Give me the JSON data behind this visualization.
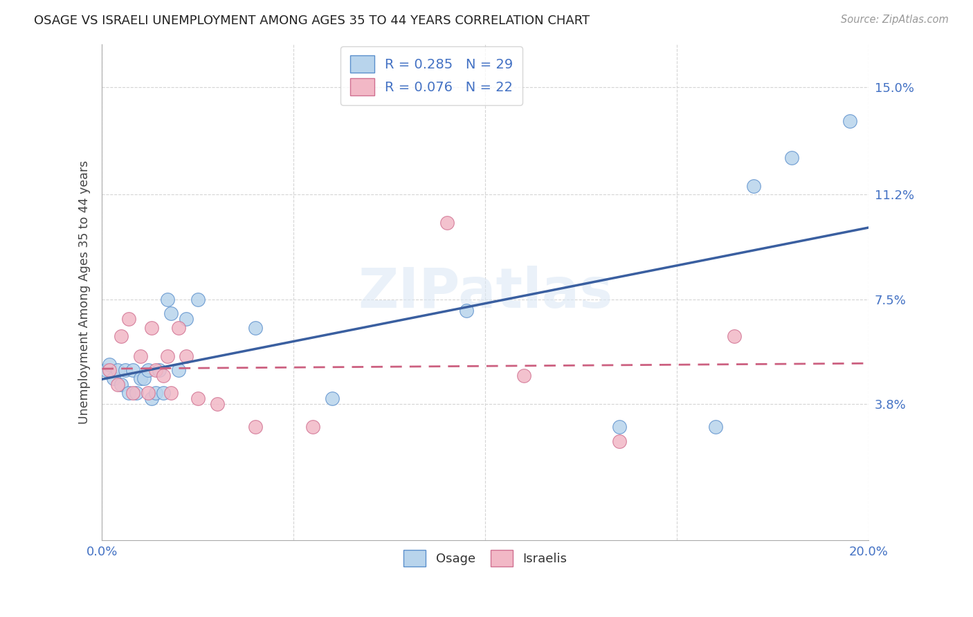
{
  "title": "OSAGE VS ISRAELI UNEMPLOYMENT AMONG AGES 35 TO 44 YEARS CORRELATION CHART",
  "source": "Source: ZipAtlas.com",
  "ylabel": "Unemployment Among Ages 35 to 44 years",
  "xlim": [
    0.0,
    0.2
  ],
  "ylim": [
    -0.01,
    0.165
  ],
  "xtick_values": [
    0.0,
    0.05,
    0.1,
    0.15,
    0.2
  ],
  "xtick_labels": [
    "0.0%",
    "",
    "",
    "",
    "20.0%"
  ],
  "ytick_values": [
    0.038,
    0.075,
    0.112,
    0.15
  ],
  "ytick_labels": [
    "3.8%",
    "7.5%",
    "11.2%",
    "15.0%"
  ],
  "osage_x": [
    0.001,
    0.002,
    0.003,
    0.004,
    0.005,
    0.006,
    0.007,
    0.008,
    0.009,
    0.01,
    0.011,
    0.012,
    0.013,
    0.014,
    0.015,
    0.016,
    0.017,
    0.018,
    0.02,
    0.022,
    0.025,
    0.04,
    0.06,
    0.095,
    0.135,
    0.16,
    0.17,
    0.18,
    0.195
  ],
  "osage_y": [
    0.05,
    0.052,
    0.047,
    0.05,
    0.045,
    0.05,
    0.042,
    0.05,
    0.042,
    0.047,
    0.047,
    0.05,
    0.04,
    0.042,
    0.05,
    0.042,
    0.075,
    0.07,
    0.05,
    0.068,
    0.075,
    0.065,
    0.04,
    0.071,
    0.03,
    0.03,
    0.115,
    0.125,
    0.138
  ],
  "israeli_x": [
    0.002,
    0.004,
    0.005,
    0.007,
    0.008,
    0.01,
    0.012,
    0.013,
    0.014,
    0.016,
    0.017,
    0.018,
    0.02,
    0.022,
    0.025,
    0.03,
    0.04,
    0.055,
    0.09,
    0.11,
    0.135,
    0.165
  ],
  "israeli_y": [
    0.05,
    0.045,
    0.062,
    0.068,
    0.042,
    0.055,
    0.042,
    0.065,
    0.05,
    0.048,
    0.055,
    0.042,
    0.065,
    0.055,
    0.04,
    0.038,
    0.03,
    0.03,
    0.102,
    0.048,
    0.025,
    0.062
  ],
  "osage_face": "#b8d4ec",
  "osage_edge": "#5b8fcc",
  "israeli_face": "#f2b8c6",
  "israeli_edge": "#d07090",
  "osage_line": "#3a5fa0",
  "israeli_line": "#cc6080",
  "R_osage": "0.285",
  "N_osage": "29",
  "R_israeli": "0.076",
  "N_israeli": "22",
  "watermark": "ZIPatlas",
  "bg": "#ffffff",
  "grid_color": "#d5d5d5"
}
